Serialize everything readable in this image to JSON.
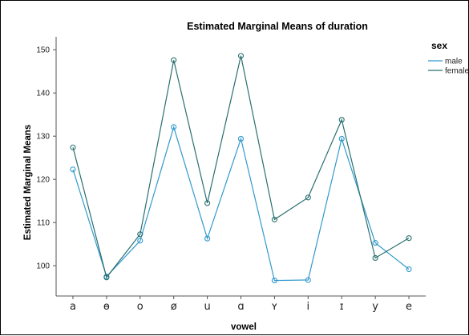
{
  "chart_data": {
    "type": "line",
    "title": "Estimated Marginal Means of duration",
    "xlabel": "vowel",
    "ylabel": "Estimated Marginal Means",
    "categories": [
      "a",
      "ɵ",
      "o",
      "ø",
      "u",
      "ɑ",
      "ʏ",
      "i",
      "ɪ",
      "y",
      "e"
    ],
    "ylim": [
      93,
      153
    ],
    "yticks": [
      100,
      110,
      120,
      130,
      140,
      150
    ],
    "grid": false,
    "legend_title": "sex",
    "legend_position": "top-right",
    "series": [
      {
        "name": "male",
        "color": "#3399cc",
        "values": [
          122.3,
          97.5,
          105.8,
          132.1,
          106.3,
          129.4,
          96.6,
          96.7,
          129.4,
          105.3,
          99.2
        ]
      },
      {
        "name": "female",
        "color": "#2a6f6f",
        "values": [
          127.4,
          97.3,
          107.3,
          147.6,
          114.5,
          148.6,
          110.7,
          115.8,
          133.8,
          101.8,
          106.4
        ]
      }
    ]
  }
}
